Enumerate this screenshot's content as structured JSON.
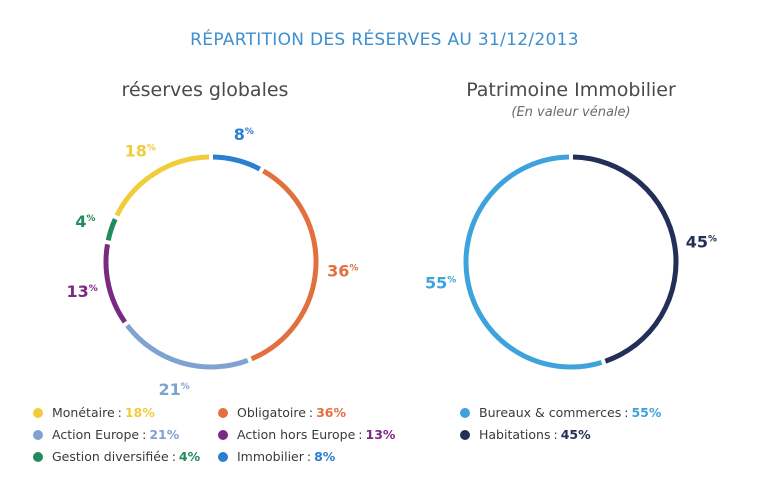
{
  "title": "RÉPARTITION DES RÉSERVES AU 31/12/2013",
  "chart_data": [
    {
      "type": "pie",
      "title": "réserves globales",
      "subtitle": "",
      "legend": "bottom",
      "slices": [
        {
          "label": "Immobilier",
          "value": 8,
          "display": "8",
          "color": "#2a7fd0"
        },
        {
          "label": "Obligatoire",
          "value": 36,
          "display": "36",
          "color": "#e2703f"
        },
        {
          "label": "Action Europe",
          "value": 21,
          "display": "21",
          "color": "#7fa3d0"
        },
        {
          "label": "Action hors Europe",
          "value": 13,
          "display": "13",
          "color": "#7b2a83"
        },
        {
          "label": "Gestion diversifiée",
          "value": 4,
          "display": "4",
          "color": "#218a5e"
        },
        {
          "label": "Monétaire",
          "value": 18,
          "display": "18",
          "color": "#f1cc3b"
        }
      ],
      "legend_order": [
        "Monétaire",
        "Obligatoire",
        "Action Europe",
        "Action hors Europe",
        "Gestion diversifiée",
        "Immobilier"
      ]
    },
    {
      "type": "pie",
      "title": "Patrimoine Immobilier",
      "subtitle": "(En valeur vénale)",
      "legend": "bottom",
      "slices": [
        {
          "label": "Habitations",
          "value": 45,
          "display": "45",
          "color": "#232f58"
        },
        {
          "label": "Bureaux & commerces",
          "value": 55,
          "display": "55",
          "color": "#3ea3dd"
        }
      ],
      "legend_order": [
        "Bureaux & commerces",
        "Habitations"
      ]
    }
  ],
  "percent_sign": "%",
  "legend_separator": ":"
}
